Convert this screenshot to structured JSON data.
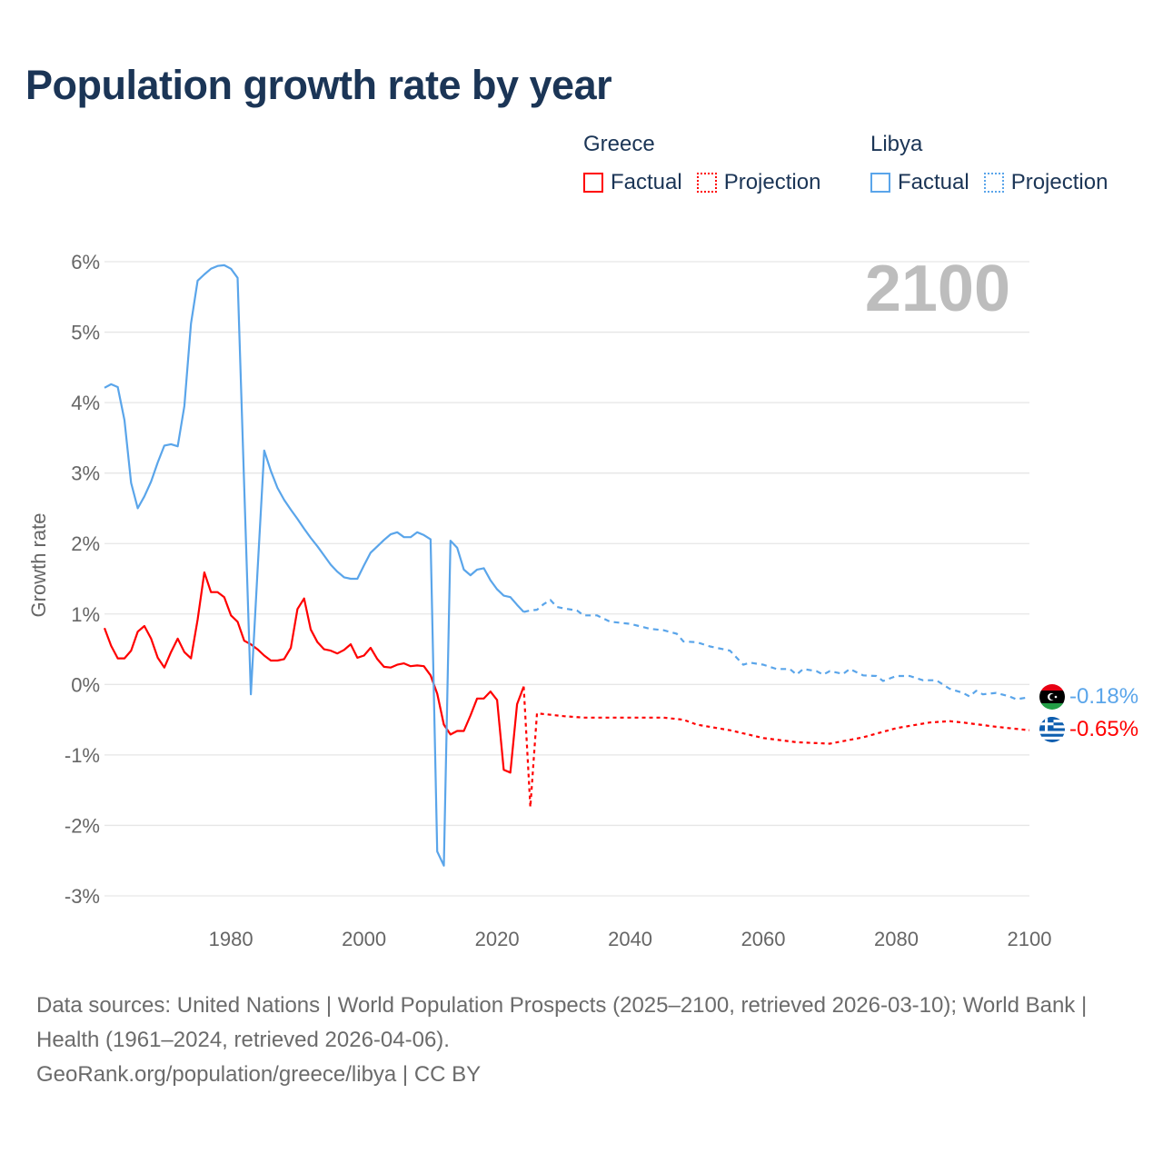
{
  "title": "Population growth rate by year",
  "legend": {
    "groups": [
      {
        "name": "Greece",
        "factual": "Factual",
        "projection": "Projection",
        "color": "#ff0000"
      },
      {
        "name": "Libya",
        "factual": "Factual",
        "projection": "Projection",
        "color": "#5aa5ea"
      }
    ]
  },
  "year_label": "2100",
  "end_labels": {
    "libya": "-0.18%",
    "greece": "-0.65%"
  },
  "footer": {
    "sources": "Data sources: United Nations | World Population Prospects (2025–2100, retrieved 2026-03-10); World Bank | Health (1961–2024, retrieved 2026-04-06).",
    "credit": "GeoRank.org/population/greece/libya | CC BY"
  },
  "chart_data": {
    "type": "line",
    "title": "Population growth rate by year",
    "xlabel": "",
    "ylabel": "Growth rate",
    "xlim": [
      1961,
      2100
    ],
    "ylim": [
      -3,
      6
    ],
    "x_ticks": [
      1980,
      2000,
      2020,
      2040,
      2060,
      2080,
      2100
    ],
    "x_tick_labels": [
      "1980",
      "2000",
      "2020",
      "2040",
      "2060",
      "2080",
      "2100"
    ],
    "y_ticks": [
      6,
      5,
      4,
      3,
      2,
      1,
      0,
      -1,
      -2,
      -3
    ],
    "y_tick_labels": [
      "6%",
      "5%",
      "4%",
      "3%",
      "2%",
      "1%",
      "0%",
      "-1%",
      "-2%",
      "-3%"
    ],
    "grid": true,
    "legend_position": "top-right",
    "series": [
      {
        "name": "Greece Factual",
        "color": "#ff0000",
        "style": "solid",
        "x": [
          1961,
          1962,
          1963,
          1964,
          1965,
          1966,
          1967,
          1968,
          1969,
          1970,
          1971,
          1972,
          1973,
          1974,
          1975,
          1976,
          1977,
          1978,
          1979,
          1980,
          1981,
          1982,
          1983,
          1984,
          1985,
          1986,
          1987,
          1988,
          1989,
          1990,
          1991,
          1992,
          1993,
          1994,
          1995,
          1996,
          1997,
          1998,
          1999,
          2000,
          2001,
          2002,
          2003,
          2004,
          2005,
          2006,
          2007,
          2008,
          2009,
          2010,
          2011,
          2012,
          2013,
          2014,
          2015,
          2016,
          2017,
          2018,
          2019,
          2020,
          2021,
          2022,
          2023,
          2024
        ],
        "y": [
          0.8,
          0.55,
          0.37,
          0.37,
          0.48,
          0.75,
          0.83,
          0.65,
          0.38,
          0.24,
          0.46,
          0.65,
          0.46,
          0.37,
          0.92,
          1.59,
          1.31,
          1.31,
          1.24,
          0.98,
          0.89,
          0.62,
          0.57,
          0.5,
          0.41,
          0.34,
          0.34,
          0.36,
          0.52,
          1.07,
          1.22,
          0.78,
          0.6,
          0.5,
          0.48,
          0.44,
          0.49,
          0.57,
          0.38,
          0.41,
          0.52,
          0.36,
          0.25,
          0.24,
          0.28,
          0.3,
          0.26,
          0.27,
          0.26,
          0.13,
          -0.13,
          -0.57,
          -0.71,
          -0.66,
          -0.66,
          -0.44,
          -0.2,
          -0.2,
          -0.1,
          -0.22,
          -1.21,
          -1.25,
          -0.28,
          -0.03
        ]
      },
      {
        "name": "Greece Projection",
        "color": "#ff0000",
        "style": "dotted",
        "x": [
          2024,
          2025,
          2026,
          2030,
          2033,
          2040,
          2045,
          2048,
          2050,
          2055,
          2060,
          2065,
          2070,
          2075,
          2080,
          2085,
          2088,
          2090,
          2095,
          2100
        ],
        "y": [
          -0.03,
          -1.74,
          -0.41,
          -0.45,
          -0.47,
          -0.47,
          -0.47,
          -0.5,
          -0.57,
          -0.65,
          -0.76,
          -0.82,
          -0.84,
          -0.75,
          -0.62,
          -0.54,
          -0.52,
          -0.54,
          -0.6,
          -0.65
        ]
      },
      {
        "name": "Libya Factual",
        "color": "#5aa5ea",
        "style": "solid",
        "x": [
          1961,
          1962,
          1963,
          1964,
          1965,
          1966,
          1967,
          1968,
          1969,
          1970,
          1971,
          1972,
          1973,
          1974,
          1975,
          1976,
          1977,
          1978,
          1979,
          1980,
          1981,
          1982,
          1983,
          1984,
          1985,
          1986,
          1987,
          1988,
          1989,
          1990,
          1991,
          1992,
          1993,
          1994,
          1995,
          1996,
          1997,
          1998,
          1999,
          2000,
          2001,
          2002,
          2003,
          2004,
          2005,
          2006,
          2007,
          2008,
          2009,
          2010,
          2011,
          2012,
          2013,
          2014,
          2015,
          2016,
          2017,
          2018,
          2019,
          2020,
          2021,
          2022,
          2023,
          2024
        ],
        "y": [
          4.21,
          4.26,
          4.22,
          3.75,
          2.86,
          2.5,
          2.67,
          2.88,
          3.15,
          3.39,
          3.41,
          3.38,
          3.95,
          5.12,
          5.73,
          5.82,
          5.9,
          5.94,
          5.95,
          5.9,
          5.77,
          2.8,
          -0.14,
          1.6,
          3.32,
          3.03,
          2.79,
          2.62,
          2.48,
          2.35,
          2.21,
          2.08,
          1.96,
          1.83,
          1.7,
          1.6,
          1.52,
          1.5,
          1.5,
          1.69,
          1.87,
          1.96,
          2.05,
          2.13,
          2.16,
          2.09,
          2.09,
          2.16,
          2.12,
          2.06,
          -2.37,
          -2.57,
          2.04,
          1.94,
          1.63,
          1.55,
          1.63,
          1.65,
          1.48,
          1.35,
          1.26,
          1.24,
          1.13,
          1.03
        ]
      },
      {
        "name": "Libya Projection",
        "color": "#5aa5ea",
        "style": "dashed",
        "x": [
          2024,
          2025,
          2026,
          2027,
          2028,
          2029,
          2030,
          2032,
          2033,
          2035,
          2037,
          2040,
          2043,
          2045,
          2047,
          2048,
          2050,
          2052,
          2055,
          2057,
          2058,
          2060,
          2062,
          2064,
          2065,
          2066,
          2068,
          2069,
          2070,
          2072,
          2073,
          2075,
          2077,
          2078,
          2080,
          2082,
          2084,
          2086,
          2088,
          2090,
          2091,
          2092,
          2093,
          2095,
          2097,
          2098,
          2100
        ],
        "y": [
          1.03,
          1.05,
          1.06,
          1.14,
          1.2,
          1.1,
          1.08,
          1.05,
          0.98,
          0.98,
          0.89,
          0.86,
          0.79,
          0.77,
          0.72,
          0.61,
          0.6,
          0.54,
          0.48,
          0.28,
          0.31,
          0.28,
          0.22,
          0.22,
          0.14,
          0.22,
          0.19,
          0.14,
          0.19,
          0.15,
          0.22,
          0.13,
          0.12,
          0.05,
          0.12,
          0.12,
          0.06,
          0.06,
          -0.06,
          -0.12,
          -0.17,
          -0.09,
          -0.14,
          -0.12,
          -0.17,
          -0.21,
          -0.18
        ]
      }
    ]
  }
}
